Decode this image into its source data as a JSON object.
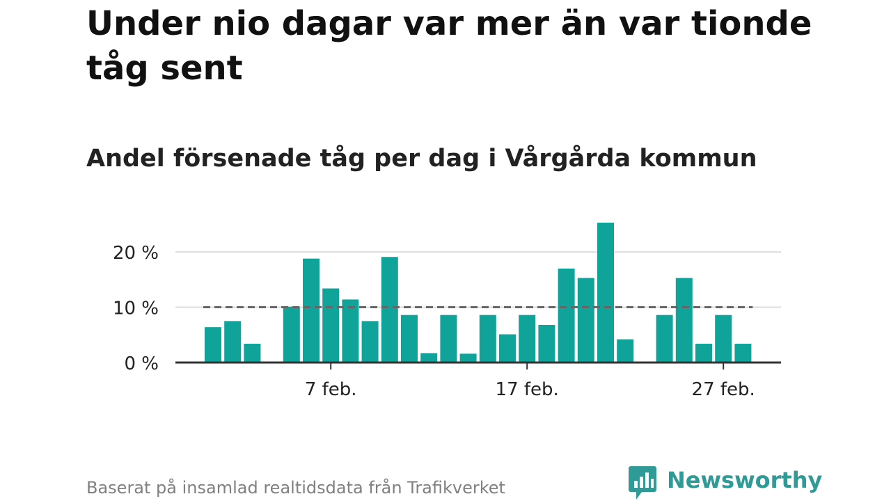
{
  "header": {
    "title": "Under nio dagar var mer än var tionde tåg sent",
    "subtitle": "Andel försenade tåg per dag i Vårgårda kommun"
  },
  "footer": {
    "source": "Baserat på insamlad realtidsdata från Trafikverket",
    "brand": "Newsworthy"
  },
  "colors": {
    "bar": "#10a39a",
    "reference_line": "#666666",
    "grid": "#dddddd",
    "axis": "#333333",
    "brand": "#2f9a96"
  },
  "chart_data": {
    "type": "bar",
    "x": [
      "1 feb.",
      "2 feb.",
      "3 feb.",
      "4 feb.",
      "5 feb.",
      "6 feb.",
      "7 feb.",
      "8 feb.",
      "9 feb.",
      "10 feb.",
      "11 feb.",
      "12 feb.",
      "13 feb.",
      "14 feb.",
      "15 feb.",
      "16 feb.",
      "17 feb.",
      "18 feb.",
      "19 feb.",
      "20 feb.",
      "21 feb.",
      "22 feb.",
      "23 feb.",
      "24 feb.",
      "25 feb.",
      "26 feb.",
      "27 feb.",
      "28 feb."
    ],
    "values": [
      6.4,
      7.5,
      3.4,
      null,
      10.1,
      18.8,
      13.4,
      11.4,
      7.5,
      19.1,
      8.6,
      1.7,
      8.6,
      1.6,
      8.6,
      5.1,
      8.6,
      6.8,
      17.0,
      15.3,
      25.3,
      4.2,
      null,
      8.6,
      15.3,
      3.4,
      8.6,
      3.4
    ],
    "ylim": [
      0,
      25.3
    ],
    "yticks": [
      0,
      10,
      20
    ],
    "ytick_labels": [
      "0 %",
      "10 %",
      "20 %"
    ],
    "xticks": [
      {
        "x": "7 feb.",
        "label": "7 feb."
      },
      {
        "x": "17 feb.",
        "label": "17 feb."
      },
      {
        "x": "27 feb.",
        "label": "27 feb."
      }
    ],
    "reference_line": 10,
    "grid": true
  }
}
